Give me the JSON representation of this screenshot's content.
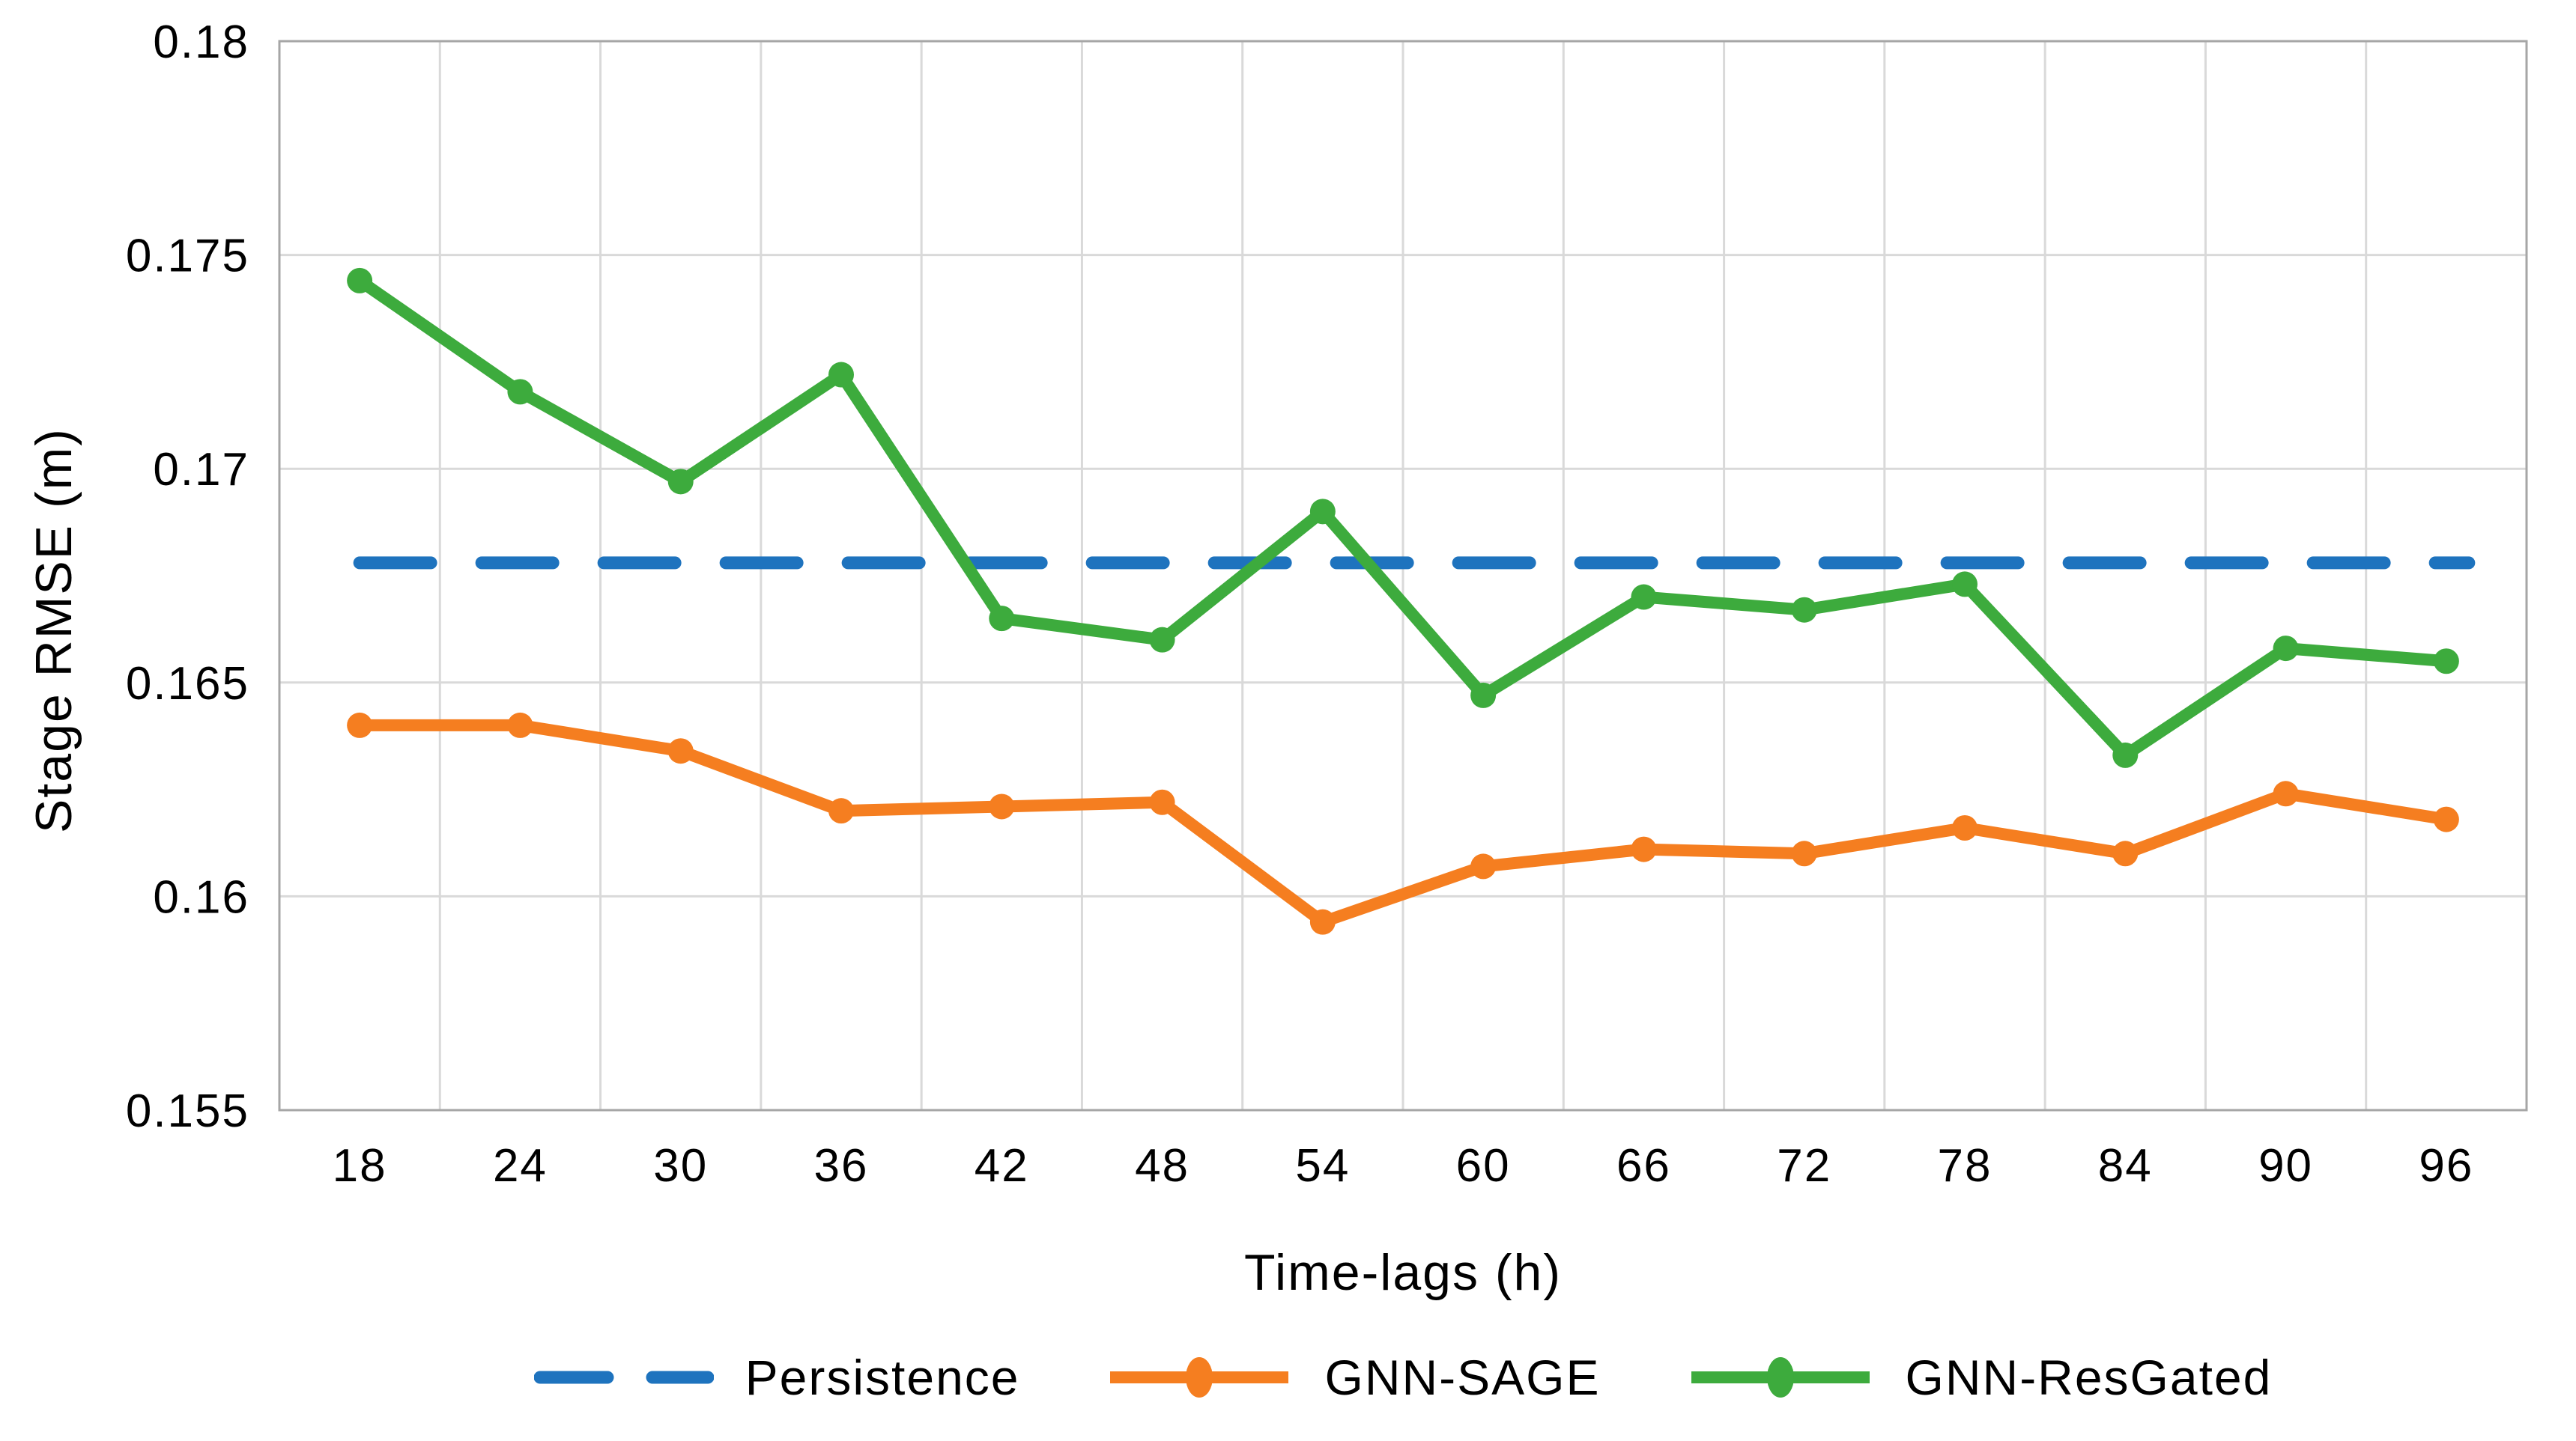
{
  "figure": {
    "background_color": "#FFFFFF",
    "kind": "line chart"
  },
  "chart_data": {
    "type": "line",
    "title": "",
    "xlabel": "Time-lags (h)",
    "ylabel": "Stage RMSE (m)",
    "x": [
      18,
      24,
      30,
      36,
      42,
      48,
      54,
      60,
      66,
      72,
      78,
      84,
      90,
      96
    ],
    "yticks": [
      0.18,
      0.175,
      0.17,
      0.165,
      0.16,
      0.155
    ],
    "ylim": [
      0.155,
      0.18
    ],
    "grid": true,
    "grid_color": "#D9D9D9",
    "border_color": "#A6A6A6",
    "legend_position": "bottom",
    "series": [
      {
        "name": "Persistence",
        "style": "dashed",
        "marker": "none",
        "color": "#1E73BE",
        "values": [
          0.1678,
          0.1678,
          0.1678,
          0.1678,
          0.1678,
          0.1678,
          0.1678,
          0.1678,
          0.1678,
          0.1678,
          0.1678,
          0.1678,
          0.1678,
          0.1678
        ]
      },
      {
        "name": "GNN-SAGE",
        "style": "solid",
        "marker": "circle",
        "color": "#F57E20",
        "values": [
          0.164,
          0.164,
          0.1634,
          0.162,
          0.1621,
          0.1622,
          0.1594,
          0.1607,
          0.1611,
          0.161,
          0.1616,
          0.161,
          0.1624,
          0.1618
        ]
      },
      {
        "name": "GNN-ResGated",
        "style": "solid",
        "marker": "circle",
        "color": "#3DAB3D",
        "values": [
          0.1744,
          0.1718,
          0.1697,
          0.1722,
          0.1665,
          0.166,
          0.169,
          0.1647,
          0.167,
          0.1667,
          0.1673,
          0.1633,
          0.1658,
          0.1655
        ]
      }
    ]
  }
}
